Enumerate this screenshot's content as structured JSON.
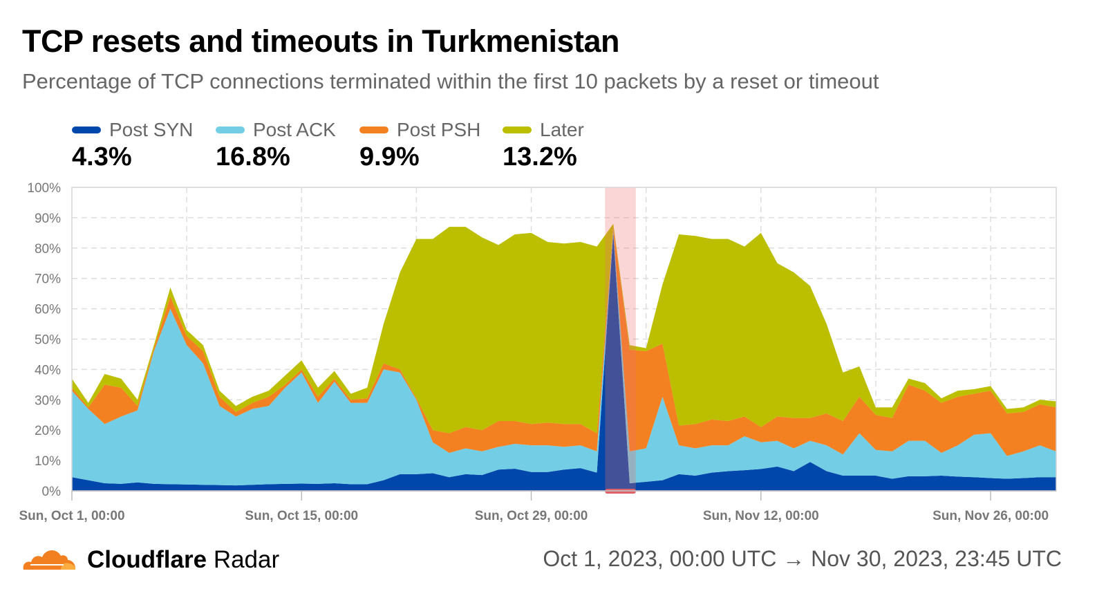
{
  "title": "TCP resets and timeouts in Turkmenistan",
  "subtitle": "Percentage of TCP connections terminated within the first 10 packets by a reset or timeout",
  "legend": [
    {
      "label": "Post SYN",
      "value": "4.3%",
      "color": "#0047ab"
    },
    {
      "label": "Post ACK",
      "value": "16.8%",
      "color": "#73cde4"
    },
    {
      "label": "Post PSH",
      "value": "9.9%",
      "color": "#f38121"
    },
    {
      "label": "Later",
      "value": "13.2%",
      "color": "#bcbe00"
    }
  ],
  "footer": {
    "brand_bold": "Cloudflare",
    "brand_light": "Radar",
    "date_range": "Oct 1, 2023, 00:00 UTC → Nov 30, 2023, 23:45 UTC"
  },
  "chart_data": {
    "type": "area",
    "stacked": true,
    "x_start": "2023-10-01",
    "x_step": "1 day",
    "ylim": [
      0,
      100
    ],
    "y_ticks": [
      "0%",
      "10%",
      "20%",
      "30%",
      "40%",
      "50%",
      "60%",
      "70%",
      "80%",
      "90%",
      "100%"
    ],
    "x_ticks": [
      "Sun, Oct 1, 00:00",
      "Sun, Oct 15, 00:00",
      "Sun, Oct 29, 00:00",
      "Sun, Nov 12, 00:00",
      "Sun, Nov 26, 00:00"
    ],
    "grid": true,
    "legend_position": "top-left",
    "highlight": {
      "from": "2023-11-02T12:00",
      "to": "2023-11-04T09:00",
      "color": "#f26b6b"
    },
    "series": [
      {
        "name": "Post SYN",
        "color": "#0047ab",
        "values": [
          4.5,
          3.5,
          2.5,
          2.3,
          2.8,
          2.3,
          2.2,
          2.1,
          2.0,
          1.9,
          1.8,
          2.0,
          2.2,
          2.3,
          2.4,
          2.3,
          2.5,
          2.2,
          2.2,
          3.5,
          5.5,
          5.5,
          5.8,
          4.5,
          5.5,
          5.2,
          7,
          7.3,
          6.2,
          6.2,
          7,
          7.5,
          6,
          85,
          2.5,
          3,
          3.5,
          5.5,
          5,
          6,
          6.5,
          6.8,
          7.2,
          8,
          6.5,
          9.5,
          6.5,
          5,
          5,
          5,
          4,
          4.8,
          4.8,
          5,
          4.7,
          4.5,
          4.2,
          4,
          4.2,
          4.5,
          4.5
        ]
      },
      {
        "name": "Post ACK",
        "color": "#73cde4",
        "values": [
          28.5,
          23.5,
          19.5,
          22.2,
          23.7,
          43.7,
          57.8,
          45.9,
          40,
          26.1,
          22.7,
          25,
          25.8,
          31.7,
          36.6,
          26.7,
          33.5,
          26.8,
          26.8,
          36.5,
          33.5,
          24.5,
          10.2,
          8,
          8.5,
          7.8,
          7.5,
          8.2,
          8.8,
          8.8,
          7.5,
          7.5,
          7,
          1,
          10.5,
          11,
          27.5,
          9.5,
          9,
          9,
          8.5,
          11.2,
          8.8,
          8.5,
          7.5,
          7,
          8.5,
          7,
          14,
          8.5,
          9,
          11.7,
          11.7,
          7.5,
          10.3,
          14,
          14.8,
          7.5,
          8.8,
          10.5,
          8.5
        ]
      },
      {
        "name": "Post PSH",
        "color": "#f38121",
        "values": [
          1,
          0.5,
          13,
          9.5,
          1.5,
          1,
          4,
          3,
          4,
          3,
          1.5,
          2,
          3,
          1,
          1,
          2,
          1,
          1,
          1.5,
          2,
          1,
          0.5,
          4,
          6.5,
          7,
          7,
          8.5,
          7.5,
          7,
          7.5,
          7.5,
          7,
          6,
          1,
          33.5,
          32,
          17.5,
          6.5,
          8,
          8.5,
          8,
          6.5,
          5,
          8,
          10,
          7.5,
          10.5,
          11,
          12,
          11.5,
          11,
          18.5,
          16.5,
          16.5,
          16,
          13.5,
          14,
          14,
          13,
          13.5,
          14.5
        ]
      },
      {
        "name": "Later",
        "color": "#bcbe00",
        "values": [
          3,
          1.5,
          3.5,
          3,
          2,
          1,
          3,
          2,
          2,
          2,
          2,
          2,
          2,
          3,
          3,
          3,
          2.5,
          2,
          3.5,
          13,
          32,
          52.5,
          63,
          68,
          66,
          63.5,
          58,
          61.5,
          63,
          59.5,
          59.5,
          60,
          61.5,
          1,
          1.5,
          1,
          19.5,
          63,
          62,
          59.5,
          60,
          56,
          64,
          50.5,
          48,
          43.5,
          29.5,
          16,
          10,
          2.5,
          3.5,
          2,
          2.5,
          1.5,
          2,
          1.5,
          1.5,
          1.5,
          1.5,
          1.5,
          2
        ]
      }
    ]
  }
}
